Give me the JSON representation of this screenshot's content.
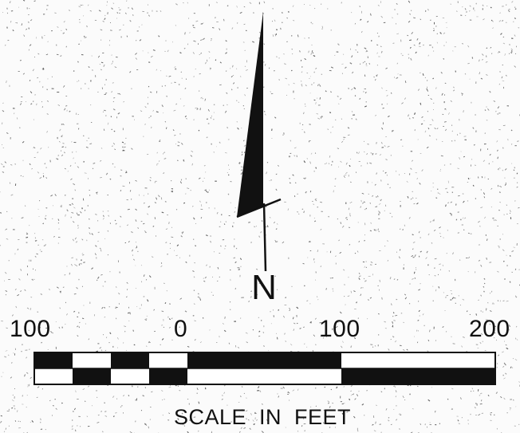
{
  "north_arrow": {
    "letter": "N"
  },
  "scale": {
    "tick_labels": [
      "100",
      "0",
      "100",
      "200"
    ],
    "caption": "SCALE  IN  FEET",
    "unit": "feet",
    "left_extension_feet": 100,
    "main_length_feet": 200
  },
  "colors": {
    "ink": "#111111",
    "paper": "#fbfbfb"
  }
}
